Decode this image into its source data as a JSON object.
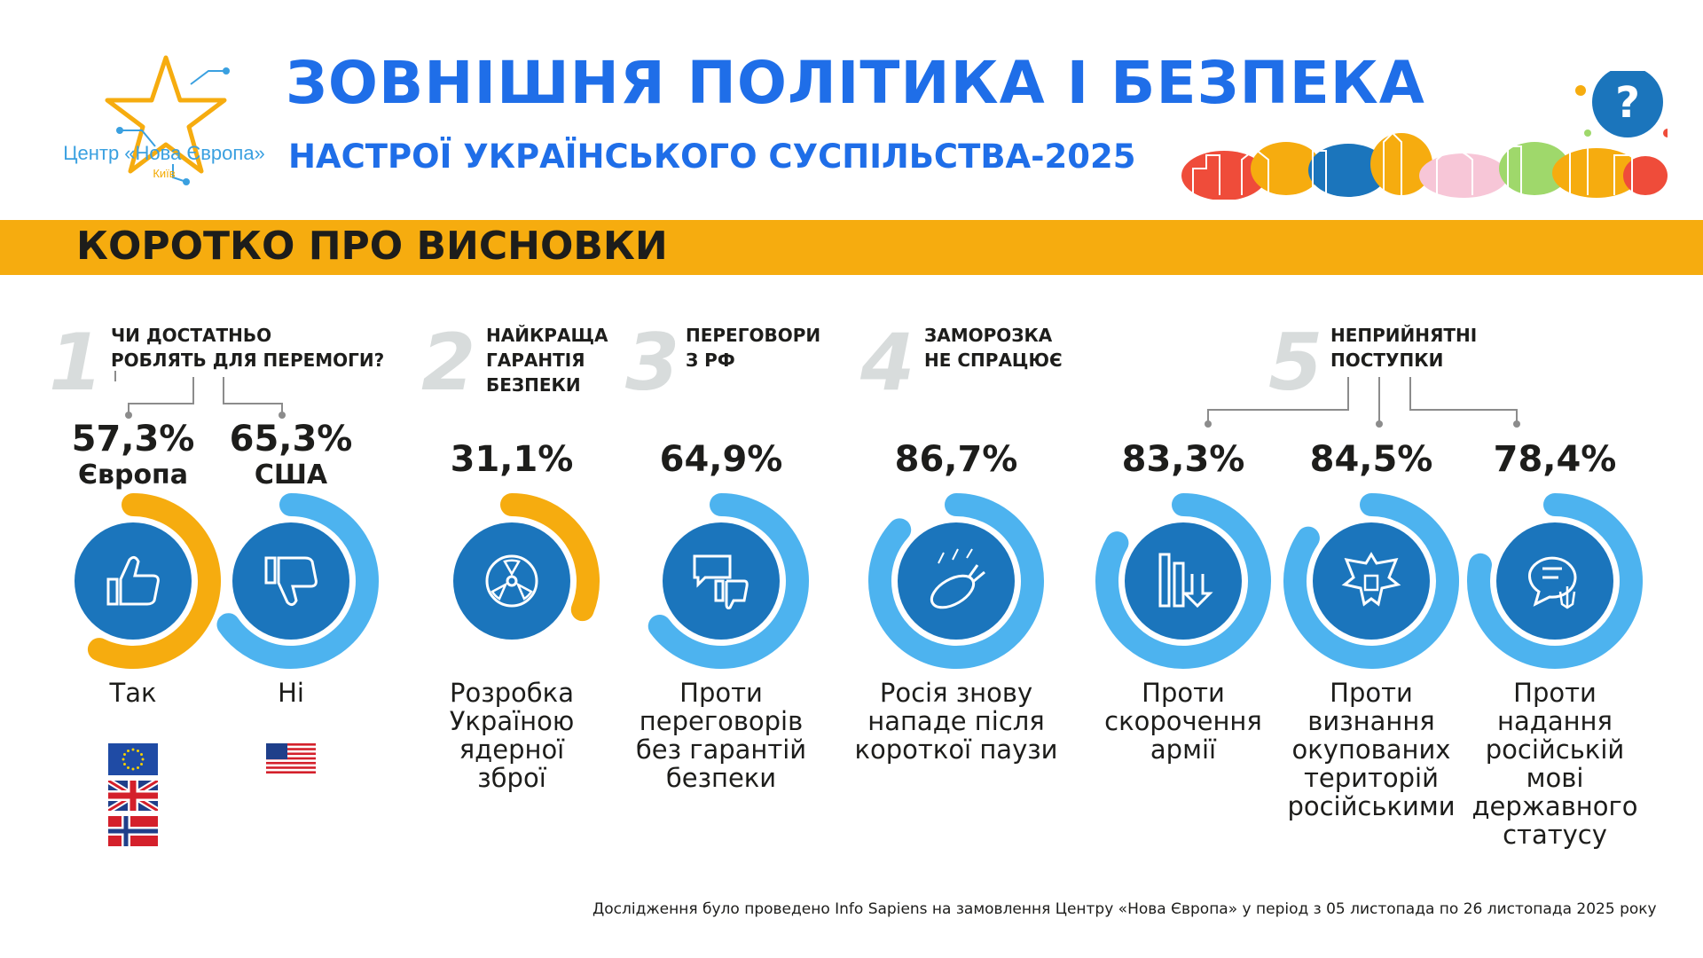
{
  "logo": {
    "name": "Центр «Нова Європа»",
    "city": "Київ"
  },
  "header": {
    "title": "ЗОВНІШНЯ ПОЛІТИКА І БЕЗПЕКА",
    "subtitle": "НАСТРОЇ УКРАЇНСЬКОГО СУСПІЛЬСТВА-2025"
  },
  "band": {
    "label": "КОРОТКО ПРО ВИСНОВКИ"
  },
  "sections": [
    {
      "number": "1",
      "title": "ЧИ ДОСТАТНЬО\nРОБЛЯТЬ ДЛЯ ПЕРЕМОГИ?"
    },
    {
      "number": "2",
      "title": "НАЙКРАЩА\nГАРАНТІЯ\nБЕЗПЕКИ"
    },
    {
      "number": "3",
      "title": "ПЕРЕГОВОРИ\nЗ РФ"
    },
    {
      "number": "4",
      "title": "ЗАМОРОЗКА\nНЕ СПРАЦЮЄ"
    },
    {
      "number": "5",
      "title": "НЕПРИЙНЯТНІ\nПОСТУПКИ"
    }
  ],
  "stats": [
    {
      "percent": "57,3%",
      "value": 57.3,
      "sublabel": "Європа",
      "caption": "Так",
      "color": "#f6ac0f",
      "icon": "thumbs-up-icon"
    },
    {
      "percent": "65,3%",
      "value": 65.3,
      "sublabel": "США",
      "caption": "Ні",
      "color": "#4db3ef",
      "icon": "thumbs-down-icon"
    },
    {
      "percent": "31,1%",
      "value": 31.1,
      "caption": "Розробка\nУкраїною\nядерної\nзброї",
      "color": "#f6ac0f",
      "icon": "nuclear-icon"
    },
    {
      "percent": "64,9%",
      "value": 64.9,
      "caption": "Проти\nпереговорів\nбез гарантій\nбезпеки",
      "color": "#4db3ef",
      "icon": "dialog-thumbs-down-icon"
    },
    {
      "percent": "86,7%",
      "value": 86.7,
      "caption": "Росія знову\nнападе після\nкороткої паузи",
      "color": "#4db3ef",
      "icon": "bomb-icon"
    },
    {
      "percent": "83,3%",
      "value": 83.3,
      "caption": "Проти\nскорочення\nармії",
      "color": "#4db3ef",
      "icon": "army-reduction-icon"
    },
    {
      "percent": "84,5%",
      "value": 84.5,
      "caption": "Проти\nвизнання\nокупованих\nтериторій\nросійськими",
      "color": "#4db3ef",
      "icon": "eagle-emblem-icon"
    },
    {
      "percent": "78,4%",
      "value": 78.4,
      "caption": "Проти\nнадання\nросійській\nмові\nдержавного\nстатусу",
      "color": "#4db3ef",
      "icon": "language-trident-icon"
    }
  ],
  "flags": {
    "europe": [
      "eu-flag-icon",
      "uk-flag-icon",
      "norway-flag-icon"
    ],
    "usa": [
      "us-flag-icon"
    ]
  },
  "colors": {
    "title_blue": "#1f6ee8",
    "band_orange": "#f6ac0f",
    "icon_blue": "#1b75bc",
    "ring_blue": "#4db3ef",
    "ring_orange": "#f6ac0f"
  },
  "footer": {
    "note": "Дослідження було проведено Info Sapiens на замовлення Центру «Нова Європа» у період з 05 листопада по 26 листопада 2025 року"
  }
}
